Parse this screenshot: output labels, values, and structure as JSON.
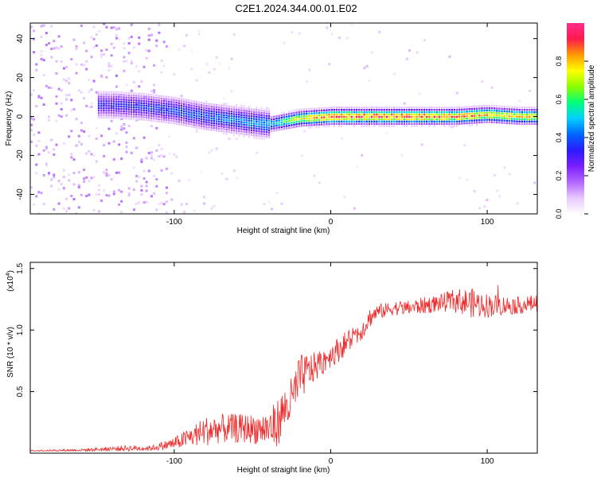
{
  "title": "C2E1.2024.344.00.01.E02",
  "colors": {
    "snr_line": "#ee2b2b",
    "colorscale": [
      "#ffffff",
      "#e8c8ff",
      "#b366ff",
      "#7a1fff",
      "#2a1aff",
      "#0066ff",
      "#00cfff",
      "#00ff7a",
      "#8cff00",
      "#ffff00",
      "#ff9900",
      "#ff1a4d",
      "#ff2d8c"
    ]
  },
  "chart_data": [
    {
      "type": "heatmap",
      "title": "C2E1.2024.344.00.01.E02",
      "xlabel": "Height of straight line (km)",
      "ylabel": "Frequency (Hz)",
      "xlim": [
        -192,
        132
      ],
      "ylim": [
        -50,
        48
      ],
      "x_ticks": [
        -100,
        0,
        100
      ],
      "y_ticks": [
        -40,
        -20,
        0,
        20,
        40
      ],
      "colorbar": {
        "label": "Normalized spectral amplitude",
        "range": [
          0,
          1
        ],
        "ticks": [
          0.0,
          0.2,
          0.4,
          0.6,
          0.8
        ]
      },
      "ridge": {
        "frequency_hz": [
          [
            -140,
            6
          ],
          [
            -120,
            5
          ],
          [
            -100,
            3
          ],
          [
            -80,
            0
          ],
          [
            -60,
            -2
          ],
          [
            -40,
            -4
          ],
          [
            -20,
            -1
          ],
          [
            0,
            0
          ],
          [
            20,
            0
          ],
          [
            40,
            0
          ],
          [
            60,
            0
          ],
          [
            80,
            0
          ],
          [
            100,
            1
          ],
          [
            120,
            0
          ],
          [
            132,
            0
          ]
        ],
        "peak_amplitude": [
          [
            -140,
            0.35
          ],
          [
            -100,
            0.4
          ],
          [
            -60,
            0.45
          ],
          [
            -40,
            0.5
          ],
          [
            -20,
            0.8
          ],
          [
            0,
            0.95
          ],
          [
            40,
            0.95
          ],
          [
            80,
            0.9
          ],
          [
            100,
            0.85
          ],
          [
            132,
            0.8
          ]
        ]
      },
      "noise_region": {
        "x_range": [
          -192,
          -105
        ],
        "amplitude": 0.12
      }
    },
    {
      "type": "line",
      "xlabel": "Height of straight line (km)",
      "ylabel": "SNR (10 * v/v)",
      "scale_label_base": "(x10",
      "scale_label_exp": "4",
      "scale_label_end": ")",
      "xlim": [
        -192,
        132
      ],
      "ylim": [
        0,
        1.55
      ],
      "x_ticks": [
        -100,
        0,
        100
      ],
      "y_ticks": [
        0.5,
        1.0,
        1.5
      ],
      "y_tick_labels": [
        "0.5",
        "1.0",
        "1.5"
      ],
      "grid": false,
      "series": [
        {
          "x": [
            -192,
            -160,
            -130,
            -115,
            -100,
            -90,
            -80,
            -70,
            -60,
            -50,
            -40,
            -35,
            -30,
            -25,
            -20,
            -15,
            -10,
            -5,
            0,
            5,
            10,
            15,
            20,
            25,
            30,
            35,
            40,
            50,
            60,
            70,
            80,
            90,
            100,
            110,
            120,
            132
          ],
          "y": [
            0.02,
            0.025,
            0.04,
            0.04,
            0.08,
            0.13,
            0.18,
            0.2,
            0.2,
            0.2,
            0.2,
            0.22,
            0.35,
            0.42,
            0.6,
            0.66,
            0.7,
            0.75,
            0.8,
            0.84,
            0.9,
            0.95,
            1.0,
            1.1,
            1.15,
            1.16,
            1.18,
            1.18,
            1.2,
            1.22,
            1.24,
            1.22,
            1.2,
            1.2,
            1.2,
            1.22
          ],
          "noise_amplitude": [
            0.005,
            0.01,
            0.025,
            0.02,
            0.05,
            0.08,
            0.12,
            0.12,
            0.12,
            0.12,
            0.15,
            0.2,
            0.18,
            0.2,
            0.2,
            0.15,
            0.12,
            0.12,
            0.1,
            0.1,
            0.1,
            0.1,
            0.08,
            0.08,
            0.06,
            0.06,
            0.06,
            0.06,
            0.07,
            0.07,
            0.1,
            0.12,
            0.1,
            0.08,
            0.07,
            0.07
          ]
        }
      ]
    }
  ]
}
